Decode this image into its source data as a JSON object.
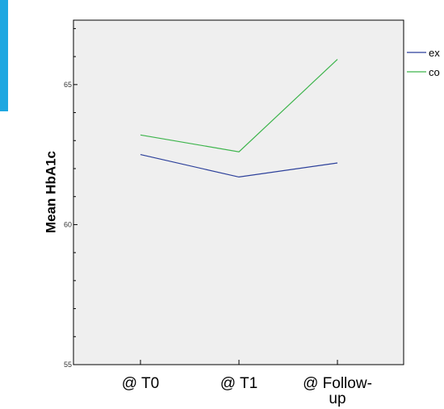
{
  "colors": {
    "plot_background": "#efefef",
    "accent": "#1ea7e1",
    "series_1": "#2b3f9a",
    "series_2": "#3cb44b"
  },
  "chart_data": {
    "type": "line",
    "title": "",
    "xlabel": "",
    "ylabel": "Mean HbA1c",
    "categories": [
      "@ T0",
      "@ T1",
      "@ Follow-up"
    ],
    "category_lines": [
      [
        "@ T0"
      ],
      [
        "@ T1"
      ],
      [
        "@ Follow-",
        "up"
      ]
    ],
    "ylim": [
      55,
      67.3
    ],
    "yticks": [
      55,
      60,
      65
    ],
    "minor_step": 1,
    "grid": false,
    "legend_position": "right",
    "series": [
      {
        "name": "ex",
        "color": "#2b3f9a",
        "values": [
          62.5,
          61.7,
          62.2
        ]
      },
      {
        "name": "co",
        "color": "#3cb44b",
        "values": [
          63.2,
          62.6,
          65.9
        ]
      }
    ]
  }
}
